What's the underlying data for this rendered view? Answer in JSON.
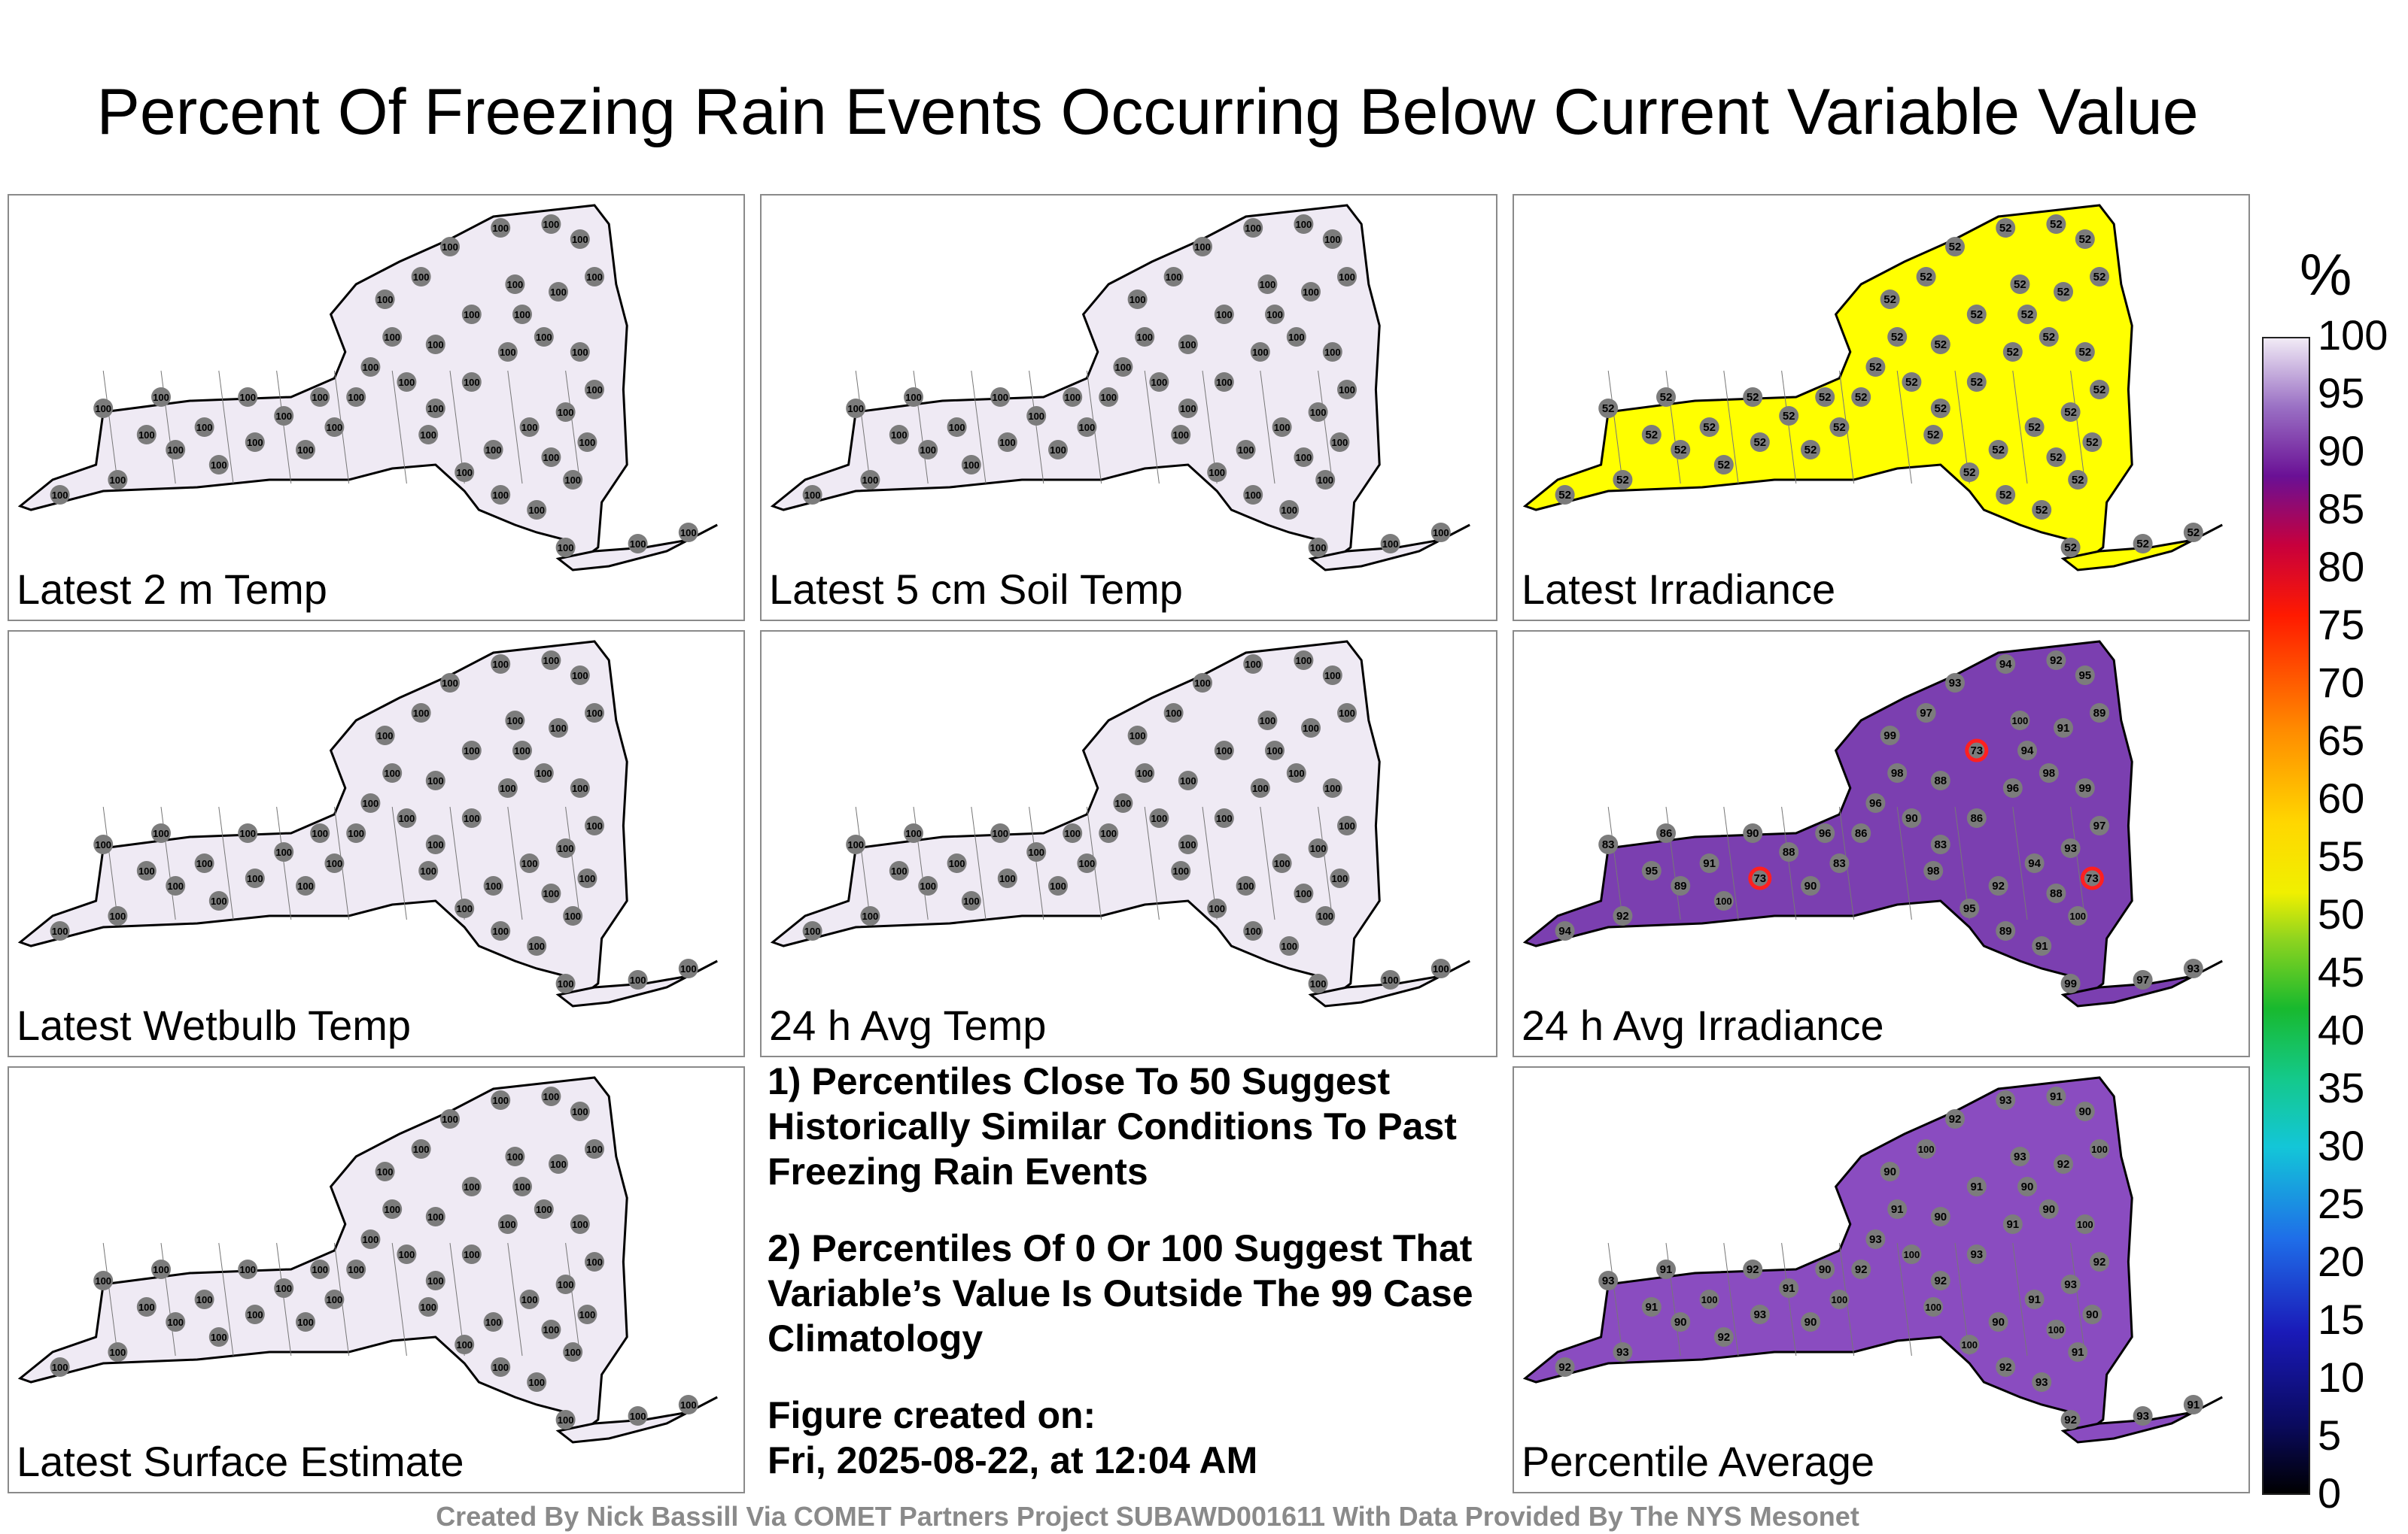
{
  "title": "Percent Of Freezing Rain Events Occurring Below Current Variable Value",
  "panels": [
    {
      "label": "Latest 2 m Temp",
      "fill": "#efeaf4",
      "values": [
        "100"
      ]
    },
    {
      "label": "Latest 5 cm Soil Temp",
      "fill": "#efeaf4",
      "values": [
        "100"
      ]
    },
    {
      "label": "Latest Irradiance",
      "fill": "#ffff00",
      "values": [
        "52"
      ]
    },
    {
      "label": "Latest Wetbulb Temp",
      "fill": "#efeaf4",
      "values": [
        "100"
      ]
    },
    {
      "label": "24 h Avg Temp",
      "fill": "#efeaf4",
      "values": [
        "100"
      ]
    },
    {
      "label": "24 h Avg Irradiance",
      "fill": "#7b3fb0",
      "values": [
        "94",
        "92",
        "95",
        "89",
        "91",
        "100",
        "73",
        "88",
        "90",
        "83",
        "86",
        "96",
        "98",
        "99",
        "97",
        "93"
      ]
    },
    {
      "label": "Latest Surface Estimate",
      "fill": "#efeaf4",
      "values": [
        "100"
      ]
    },
    {
      "label": "Percentile Average",
      "fill": "#8a4cc0",
      "values": [
        "92",
        "93",
        "91",
        "90",
        "100"
      ]
    }
  ],
  "notes": {
    "line1": "1) Percentiles Close To 50 Suggest Historically Similar Conditions To Past Freezing Rain Events",
    "line2": "2) Percentiles Of 0 Or 100 Suggest That Variable’s Value Is Outside The 99 Case Climatology",
    "created_label": "Figure created on:",
    "created_value": "Fri, 2025-08-22, at 12:04 AM"
  },
  "colorbar": {
    "unit": "%",
    "ticks": [
      "100",
      "95",
      "90",
      "85",
      "80",
      "75",
      "70",
      "65",
      "60",
      "55",
      "50",
      "45",
      "40",
      "35",
      "30",
      "25",
      "20",
      "15",
      "10",
      "5",
      "0"
    ]
  },
  "credit": "Created By Nick Bassill Via COMET Partners Project SUBAWD001611 With Data Provided By The NYS Mesonet"
}
